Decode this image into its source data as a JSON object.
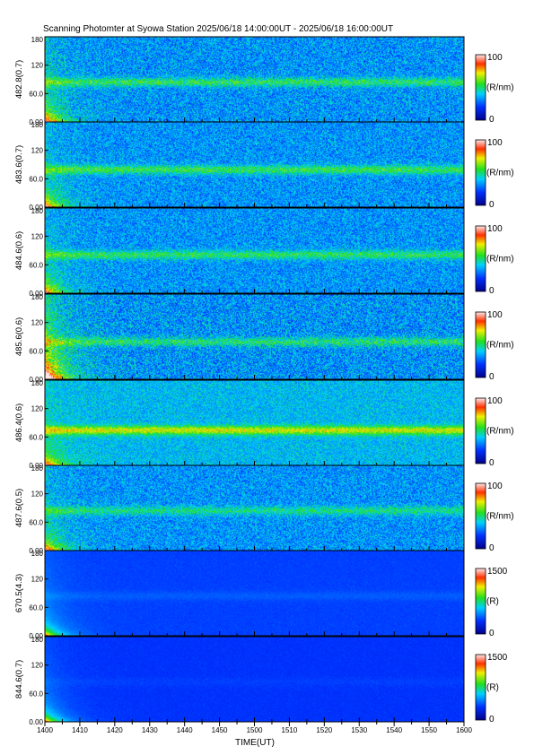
{
  "title": "Scanning Photomter at Syowa Station 2025/06/18 14:00:00UT - 2025/06/18 16:00:00UT",
  "chart_data": {
    "type": "heatmap",
    "title": "Scanning Photomter at Syowa Station 2025/06/18 14:00:00UT - 2025/06/18 16:00:00UT",
    "xlabel": "TIME(UT)",
    "x_ticks": [
      "1400",
      "1410",
      "1420",
      "1430",
      "1440",
      "1450",
      "1500",
      "1510",
      "1520",
      "1530",
      "1540",
      "1550",
      "1600"
    ],
    "x_range": [
      "1400",
      "1600"
    ],
    "y_range": [
      0,
      180
    ],
    "y_ticks": [
      "0.00",
      "60.0",
      "120",
      "180"
    ],
    "panels": [
      {
        "ylabel": "482.8(0.7)",
        "cb_max": "100",
        "cb_min": "0",
        "cb_unit": "(R/nm)",
        "band_y": 85,
        "band_strength": 0.55,
        "noise": 0.55,
        "bg": 0.33,
        "early_high": 0.25
      },
      {
        "ylabel": "483.6(0.7)",
        "cb_max": "100",
        "cb_min": "0",
        "cb_unit": "(R/nm)",
        "band_y": 80,
        "band_strength": 0.6,
        "noise": 0.5,
        "bg": 0.33,
        "early_high": 0.2
      },
      {
        "ylabel": "484.6(0.6)",
        "cb_max": "100",
        "cb_min": "0",
        "cb_unit": "(R/nm)",
        "band_y": 82,
        "band_strength": 0.55,
        "noise": 0.5,
        "bg": 0.33,
        "early_high": 0.2
      },
      {
        "ylabel": "485.6(0.6)",
        "cb_max": "100",
        "cb_min": "0",
        "cb_unit": "(R/nm)",
        "band_y": 80,
        "band_strength": 0.5,
        "noise": 0.6,
        "bg": 0.33,
        "early_high": 0.55
      },
      {
        "ylabel": "486.4(0.6)",
        "cb_max": "100",
        "cb_min": "0",
        "cb_unit": "(R/nm)",
        "band_y": 75,
        "band_strength": 0.9,
        "noise": 0.4,
        "bg": 0.38,
        "early_high": 0.15
      },
      {
        "ylabel": "487.6(0.5)",
        "cb_max": "100",
        "cb_min": "0",
        "cb_unit": "(R/nm)",
        "band_y": 85,
        "band_strength": 0.45,
        "noise": 0.5,
        "bg": 0.33,
        "early_high": 0.2
      },
      {
        "ylabel": "670.5(4.3)",
        "cb_max": "1500",
        "cb_min": "0",
        "cb_unit": "(R)",
        "band_y": 85,
        "band_strength": 0.1,
        "noise": 0.08,
        "bg": 0.22,
        "early_high": 0.15
      },
      {
        "ylabel": "844.6(0.7)",
        "cb_max": "1500",
        "cb_min": "0",
        "cb_unit": "(R)",
        "band_y": 85,
        "band_strength": 0.05,
        "noise": 0.08,
        "bg": 0.2,
        "early_high": 0.15
      }
    ]
  }
}
